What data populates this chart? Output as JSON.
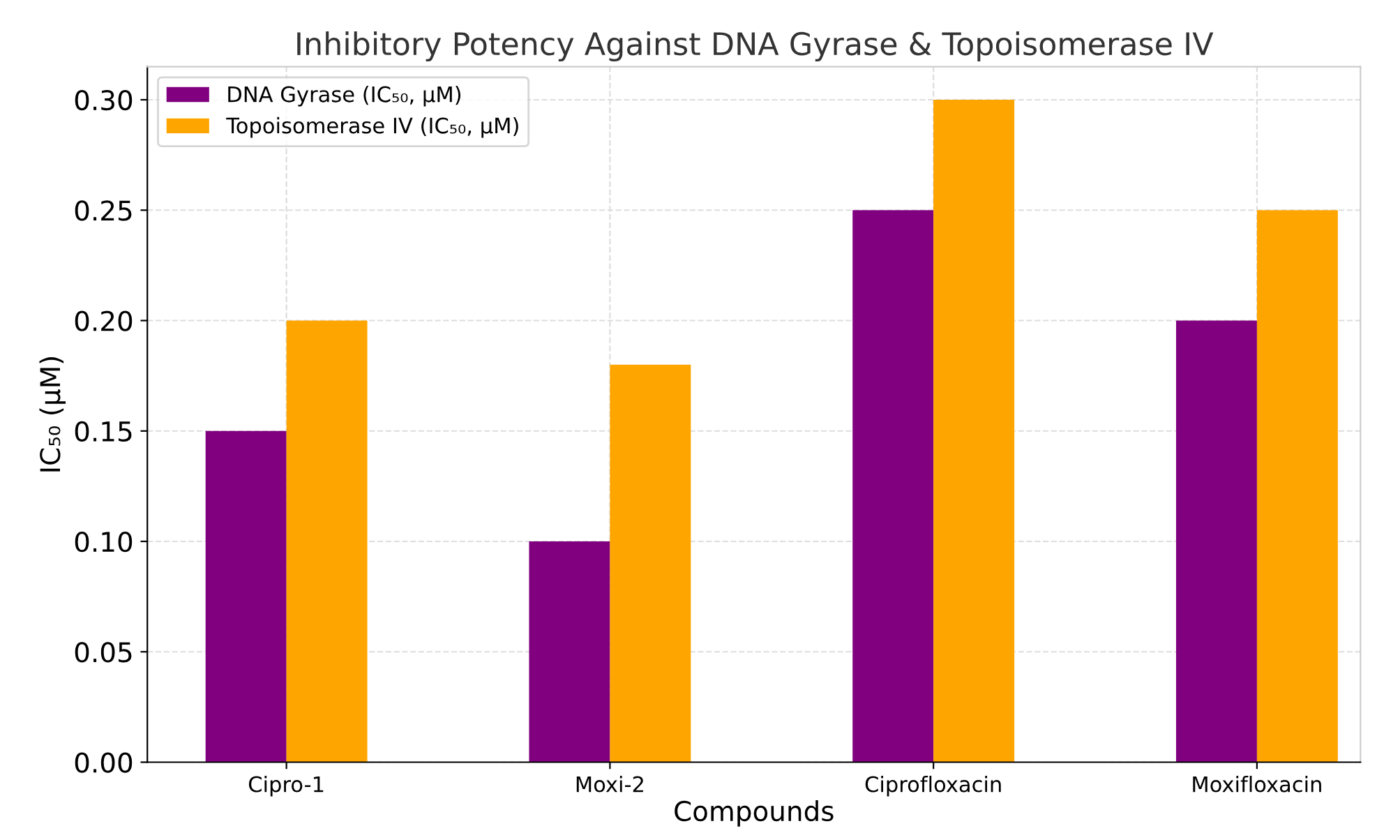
{
  "chart_data": {
    "type": "bar",
    "title": "Inhibitory Potency Against DNA Gyrase & Topoisomerase IV",
    "xlabel": "Compounds",
    "ylabel": "IC₅₀ (μM)",
    "categories": [
      "Cipro-1",
      "Moxi-2",
      "Ciprofloxacin",
      "Moxifloxacin"
    ],
    "series": [
      {
        "name": "DNA Gyrase (IC₅₀, μM)",
        "color": "#800080",
        "values": [
          0.15,
          0.1,
          0.25,
          0.2
        ]
      },
      {
        "name": "Topoisomerase IV (IC₅₀, μM)",
        "color": "#ffa500",
        "values": [
          0.2,
          0.18,
          0.3,
          0.25
        ]
      }
    ],
    "ylim": [
      0,
      0.315
    ],
    "yticks": [
      {
        "value": 0,
        "label": "0.00"
      },
      {
        "value": 0.05,
        "label": "0.05"
      },
      {
        "value": 0.1,
        "label": "0.10"
      },
      {
        "value": 0.15,
        "label": "0.15"
      },
      {
        "value": 0.2,
        "label": "0.20"
      },
      {
        "value": 0.25,
        "label": "0.25"
      },
      {
        "value": 0.3,
        "label": "0.30"
      }
    ],
    "grid": true,
    "legend": "top left",
    "line_style": "dashed"
  }
}
